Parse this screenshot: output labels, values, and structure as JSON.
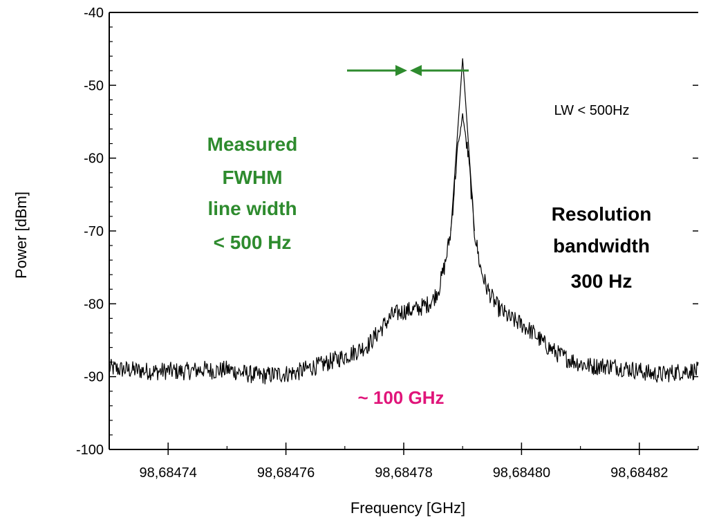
{
  "chart_data": {
    "type": "line",
    "title": "",
    "xlabel": "Frequency [GHz]",
    "ylabel": "Power [dBm]",
    "xlim": [
      98.68473,
      98.68483
    ],
    "ylim": [
      -100,
      -40
    ],
    "x_ticks": [
      98.68474,
      98.68476,
      98.68478,
      98.6848,
      98.68482
    ],
    "x_tick_labels": [
      "98,68474",
      "98,68476",
      "98,68478",
      "98,68480",
      "98,68482"
    ],
    "y_ticks": [
      -100,
      -90,
      -80,
      -70,
      -60,
      -50,
      -40
    ],
    "y_tick_labels": [
      "-100",
      "-90",
      "-80",
      "-70",
      "-60",
      "-50",
      "-40"
    ],
    "series": [
      {
        "color": "#000000",
        "points": [
          [
            98.68473,
            -88.8
          ],
          [
            98.684732,
            -89.0
          ],
          [
            98.684734,
            -89.1
          ],
          [
            98.684736,
            -89.2
          ],
          [
            98.684738,
            -89.3
          ],
          [
            98.68474,
            -89.2
          ],
          [
            98.684742,
            -89.3
          ],
          [
            98.684744,
            -89.2
          ],
          [
            98.684746,
            -89.0
          ],
          [
            98.684748,
            -89.2
          ],
          [
            98.68475,
            -89.0
          ],
          [
            98.684752,
            -89.4
          ],
          [
            98.684754,
            -89.7
          ],
          [
            98.684756,
            -89.9
          ],
          [
            98.684758,
            -89.7
          ],
          [
            98.68476,
            -89.6
          ],
          [
            98.684762,
            -89.4
          ],
          [
            98.684764,
            -88.8
          ],
          [
            98.684766,
            -88.4
          ],
          [
            98.684768,
            -87.8
          ],
          [
            98.68477,
            -87.2
          ],
          [
            98.684772,
            -86.5
          ],
          [
            98.684774,
            -85.6
          ],
          [
            98.684776,
            -83.6
          ],
          [
            98.684778,
            -81.6
          ],
          [
            98.68478,
            -81.0
          ],
          [
            98.684782,
            -80.8
          ],
          [
            98.684784,
            -80.1
          ],
          [
            98.684785,
            -79.4
          ],
          [
            98.684786,
            -77.8
          ],
          [
            98.684787,
            -74.6
          ],
          [
            98.684788,
            -70.0
          ],
          [
            98.684789,
            -60.0
          ],
          [
            98.68479,
            -54.0
          ],
          [
            98.684791,
            -60.0
          ],
          [
            98.684792,
            -70.0
          ],
          [
            98.684793,
            -75.0
          ],
          [
            98.684794,
            -77.6
          ],
          [
            98.684795,
            -79.2
          ],
          [
            98.684796,
            -80.5
          ],
          [
            98.684798,
            -82.0
          ],
          [
            98.6848,
            -82.8
          ],
          [
            98.684802,
            -84.0
          ],
          [
            98.684804,
            -85.6
          ],
          [
            98.684806,
            -86.8
          ],
          [
            98.684808,
            -87.6
          ],
          [
            98.68481,
            -88.2
          ],
          [
            98.684812,
            -88.6
          ],
          [
            98.684814,
            -88.5
          ],
          [
            98.684816,
            -88.6
          ],
          [
            98.684818,
            -88.9
          ],
          [
            98.68482,
            -89.2
          ],
          [
            98.684822,
            -89.6
          ],
          [
            98.684824,
            -89.7
          ],
          [
            98.684826,
            -89.4
          ],
          [
            98.684828,
            -89.2
          ],
          [
            98.68483,
            -89.2
          ]
        ]
      }
    ],
    "noise_amplitude": 0.9,
    "annotations": {
      "fwhm_lines": [
        "Measured",
        "FWHM",
        "line width",
        "< 500 Hz"
      ],
      "fwhm_color": "#2e8b2e",
      "lw_text": "LW < 500Hz",
      "resolution_lines": [
        "Resolution",
        "bandwidth",
        "300 Hz"
      ],
      "spacing_text": "~ 100 GHz",
      "spacing_color": "#e0157a"
    },
    "grid": false,
    "legend": "none"
  }
}
